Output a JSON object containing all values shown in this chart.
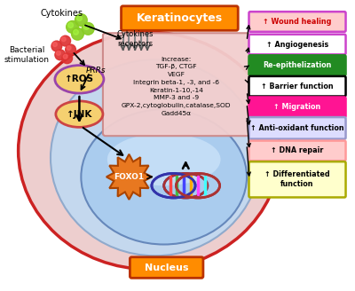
{
  "title": "Keratinocytes",
  "nucleus_label": "Nucleus",
  "cytokines_label": "Cytokines",
  "bacterial_label": "Bacterial\nstimulation",
  "prrs_label": "PRRs",
  "cytokines_receptor_label": "Cytokines\nreceptors",
  "ros_label": "↑ROS",
  "jnk_label": "↑JNK",
  "foxo1_label": "FOXO1",
  "increase_box_text": "Increase:\nTGF-β, CTGF\nVEGF\nIntegrin beta-1, -3, and -6\nKeratin-1-10,-14\nMMP-3 and -9\nGPX-2,cytoglobulin,catalase,SOD\nGadd45α",
  "right_boxes": [
    {
      "text": "↑ Wound healing",
      "bg": "#FFCCCC",
      "border": "#CC44CC",
      "text_color": "#CC0000"
    },
    {
      "text": "↑ Angiogenesis",
      "bg": "#FFFFFF",
      "border": "#CC44CC",
      "text_color": "#000000"
    },
    {
      "text": "Re-epithelization",
      "bg": "#228B22",
      "border": "#228B22",
      "text_color": "#FFFFFF"
    },
    {
      "text": "↑ Barrier function",
      "bg": "#FFFFFF",
      "border": "#000000",
      "text_color": "#000000"
    },
    {
      "text": "↑ Migration",
      "bg": "#FF1493",
      "border": "#FF1493",
      "text_color": "#FFFFFF"
    },
    {
      "text": "↑ Anti-oxidant function",
      "bg": "#DDDDFF",
      "border": "#9999CC",
      "text_color": "#000000"
    },
    {
      "text": "↑ DNA repair",
      "bg": "#FFCCCC",
      "border": "#FF9999",
      "text_color": "#000000"
    },
    {
      "text": "↑ Differentiated\nfunction",
      "bg": "#FFFFCC",
      "border": "#AAAA00",
      "text_color": "#000000"
    }
  ],
  "bg_color": "#FFFFFF",
  "cell_outer_color": "#EDCECE",
  "cell_outer_border": "#CC2222",
  "cell_inner_color": "#C4D8EE",
  "nucleus_color": "#AACCEE",
  "increase_box_color": "#F2CECE",
  "foxo1_color": "#E87820",
  "ros_color": "#F5D070",
  "ros_border": "#CC8800",
  "jnk_color": "#F5D070",
  "jnk_border": "#CC4444"
}
